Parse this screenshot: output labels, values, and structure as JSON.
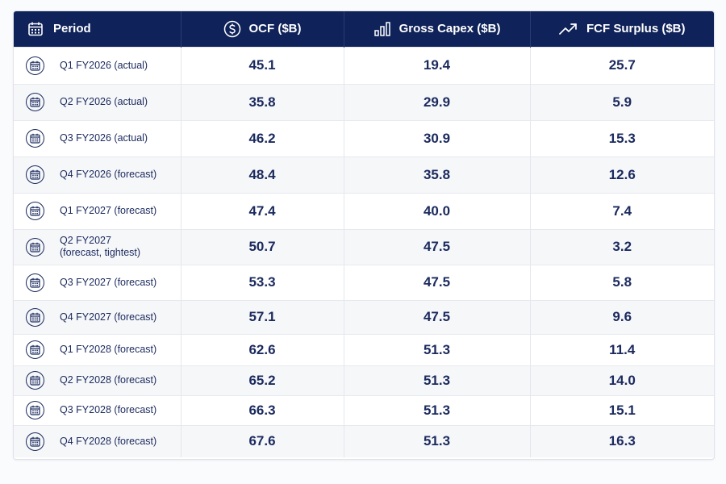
{
  "table": {
    "headers": {
      "period": "Period",
      "ocf": "OCF ($B)",
      "capex": "Gross Capex ($B)",
      "fcf": "FCF Surplus ($B)"
    },
    "header_icons": {
      "period": "calendar-icon",
      "ocf": "dollar-circle-icon",
      "capex": "bar-chart-icon",
      "fcf": "trend-up-icon"
    }
  },
  "chart_data": {
    "type": "table",
    "columns": [
      "Period",
      "OCF ($B)",
      "Gross Capex ($B)",
      "FCF Surplus ($B)"
    ],
    "rows": [
      {
        "period": "Q1 FY2026 (actual)",
        "ocf": "45.1",
        "capex": "19.4",
        "fcf": "25.7"
      },
      {
        "period": "Q2 FY2026 (actual)",
        "ocf": "35.8",
        "capex": "29.9",
        "fcf": "5.9"
      },
      {
        "period": "Q3 FY2026 (actual)",
        "ocf": "46.2",
        "capex": "30.9",
        "fcf": "15.3"
      },
      {
        "period": "Q4 FY2026 (forecast)",
        "ocf": "48.4",
        "capex": "35.8",
        "fcf": "12.6"
      },
      {
        "period": "Q1 FY2027 (forecast)",
        "ocf": "47.4",
        "capex": "40.0",
        "fcf": "7.4"
      },
      {
        "period": "Q2 FY2027\n(forecast, tightest)",
        "ocf": "50.7",
        "capex": "47.5",
        "fcf": "3.2"
      },
      {
        "period": "Q3 FY2027 (forecast)",
        "ocf": "53.3",
        "capex": "47.5",
        "fcf": "5.8"
      },
      {
        "period": "Q4 FY2027 (forecast)",
        "ocf": "57.1",
        "capex": "47.5",
        "fcf": "9.6"
      },
      {
        "period": "Q1 FY2028 (forecast)",
        "ocf": "62.6",
        "capex": "51.3",
        "fcf": "11.4"
      },
      {
        "period": "Q2 FY2028 (forecast)",
        "ocf": "65.2",
        "capex": "51.3",
        "fcf": "14.0"
      },
      {
        "period": "Q3 FY2028 (forecast)",
        "ocf": "66.3",
        "capex": "51.3",
        "fcf": "15.1"
      },
      {
        "period": "Q4 FY2028 (forecast)",
        "ocf": "67.6",
        "capex": "51.3",
        "fcf": "16.3"
      }
    ],
    "row_icon": "calendar-icon"
  },
  "colors": {
    "header_bg": "#0f2259",
    "text": "#1b2a5e",
    "row_alt": "#f6f7f9",
    "border": "#e4e7ed"
  }
}
